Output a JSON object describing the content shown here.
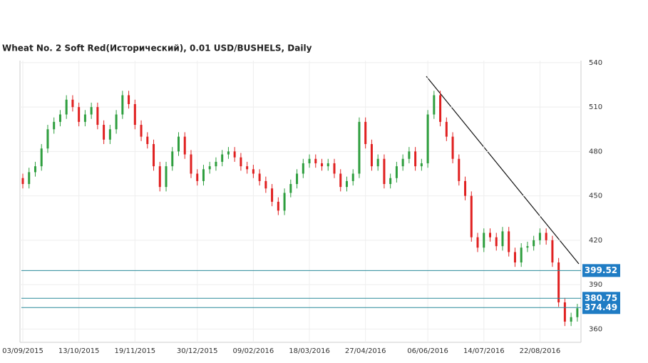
{
  "chart_data": {
    "type": "candlestick",
    "title": "Wheat  No. 2 Soft Red(Исторический), 0.01 USD/BUSHELS, Daily",
    "categories": [
      "03/09/2015",
      null,
      null,
      null,
      null,
      null,
      null,
      null,
      null,
      "13/10/2015",
      null,
      null,
      null,
      null,
      null,
      null,
      null,
      null,
      "19/11/2015",
      null,
      null,
      null,
      null,
      null,
      null,
      null,
      null,
      null,
      "30/12/2015",
      null,
      null,
      null,
      null,
      null,
      null,
      null,
      null,
      "09/02/2016",
      null,
      null,
      null,
      null,
      null,
      null,
      null,
      null,
      "18/03/2016",
      null,
      null,
      null,
      null,
      null,
      null,
      null,
      null,
      "27/04/2016",
      null,
      null,
      null,
      null,
      null,
      null,
      null,
      null,
      null,
      "06/06/2016",
      null,
      null,
      null,
      null,
      null,
      null,
      null,
      null,
      "14/07/2016",
      null,
      null,
      null,
      null,
      null,
      null,
      null,
      null,
      "22/08/2016",
      null,
      null,
      null,
      null,
      null,
      null
    ],
    "open": [
      462,
      458,
      466,
      470,
      482,
      495,
      500,
      505,
      515,
      510,
      500,
      505,
      510,
      498,
      488,
      495,
      505,
      518,
      512,
      498,
      490,
      485,
      470,
      456,
      470,
      480,
      490,
      478,
      465,
      460,
      468,
      470,
      473,
      478,
      480,
      476,
      470,
      468,
      465,
      460,
      455,
      446,
      440,
      452,
      458,
      465,
      472,
      475,
      472,
      470,
      472,
      465,
      456,
      460,
      465,
      500,
      485,
      470,
      475,
      458,
      462,
      470,
      475,
      480,
      470,
      472,
      505,
      518,
      500,
      490,
      475,
      460,
      450,
      422,
      415,
      425,
      422,
      416,
      426,
      412,
      405,
      415,
      416,
      420,
      425,
      420,
      405,
      378,
      365,
      368
    ],
    "high": [
      465,
      469,
      473,
      485,
      498,
      503,
      508,
      518,
      518,
      513,
      508,
      513,
      513,
      501,
      498,
      508,
      521,
      521,
      515,
      501,
      493,
      488,
      473,
      473,
      483,
      493,
      493,
      481,
      468,
      471,
      473,
      476,
      481,
      483,
      483,
      479,
      473,
      471,
      468,
      463,
      458,
      449,
      455,
      461,
      468,
      475,
      478,
      478,
      475,
      475,
      475,
      468,
      463,
      468,
      503,
      503,
      488,
      478,
      478,
      465,
      473,
      478,
      483,
      483,
      475,
      508,
      521,
      521,
      503,
      493,
      478,
      463,
      453,
      425,
      428,
      428,
      425,
      429,
      429,
      415,
      418,
      419,
      423,
      428,
      428,
      423,
      408,
      381,
      371,
      377
    ],
    "low": [
      455,
      455,
      463,
      467,
      479,
      492,
      497,
      502,
      507,
      497,
      497,
      502,
      495,
      485,
      485,
      492,
      502,
      509,
      495,
      487,
      482,
      467,
      453,
      453,
      467,
      477,
      475,
      462,
      457,
      457,
      465,
      467,
      470,
      475,
      473,
      467,
      465,
      462,
      457,
      452,
      443,
      437,
      437,
      449,
      455,
      462,
      469,
      469,
      467,
      467,
      462,
      453,
      453,
      457,
      462,
      482,
      467,
      467,
      455,
      455,
      459,
      467,
      472,
      467,
      467,
      469,
      502,
      497,
      487,
      472,
      457,
      447,
      419,
      412,
      412,
      419,
      413,
      413,
      409,
      402,
      402,
      412,
      413,
      417,
      417,
      402,
      375,
      362,
      362,
      365
    ],
    "close": [
      458,
      466,
      470,
      482,
      495,
      500,
      505,
      515,
      510,
      500,
      505,
      510,
      498,
      488,
      495,
      505,
      518,
      512,
      498,
      490,
      485,
      470,
      456,
      470,
      480,
      490,
      478,
      465,
      460,
      468,
      470,
      473,
      478,
      480,
      476,
      470,
      468,
      465,
      460,
      455,
      446,
      440,
      452,
      458,
      465,
      472,
      475,
      472,
      470,
      472,
      465,
      456,
      460,
      465,
      500,
      485,
      470,
      475,
      458,
      462,
      470,
      475,
      480,
      470,
      472,
      505,
      518,
      500,
      490,
      475,
      460,
      450,
      422,
      415,
      425,
      422,
      416,
      426,
      412,
      405,
      415,
      416,
      420,
      425,
      420,
      405,
      378,
      365,
      368,
      374
    ],
    "up_color": "#2e9e3e",
    "down_color": "#e02020",
    "ylim": [
      351,
      541.4
    ],
    "yticks": [
      360,
      390,
      420,
      450,
      480,
      510,
      540
    ],
    "grid": true,
    "levels": [
      399.52,
      380.75,
      374.49
    ],
    "level_color": "#2a8a9a",
    "level_label_color": "#1f7cc4"
  }
}
